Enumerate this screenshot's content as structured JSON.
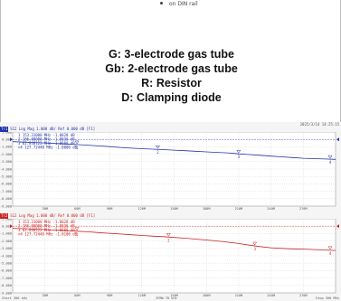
{
  "document": {
    "caption": "on DIN rail",
    "legend": [
      "G: 3-electrode gas tube",
      "Gb: 2-electrode gas tube",
      "R: Resistor",
      "D: Clamping diode"
    ]
  },
  "analyzer": {
    "datetime": "2025/3/14 14:25:15",
    "footer": {
      "start": "Start 300 kHz",
      "ifbw": "IFBW 70 kHz",
      "stop": "Stop 300 MHz"
    },
    "traces": [
      {
        "tag": "Tr1",
        "header": "S12 Log Mag 1.000 dB/ Ref 0.000 dB [F1]",
        "color": "#2233aa",
        "markers": [
          "1  153.31000 MHz  -1.0028 dB",
          "2  186.00000 MHz  -1.0036 dB",
          "3  62.848122 MHz  -1.0600 dB",
          ">4  127.72440 MHz  -1.0000 dB"
        ],
        "y_ticks": [
          "1.000",
          "0.000",
          "-1.000",
          "-2.000",
          "-3.000",
          "-4.000",
          "-5.000",
          "-6.000",
          "-7.000",
          "-8.000",
          "-9.000"
        ],
        "x_ticks": [
          "30M",
          "60M",
          "90M",
          "120M",
          "150M",
          "180M",
          "210M",
          "240M",
          "270M"
        ],
        "ylim": [
          -9,
          1
        ],
        "trace": {
          "x": [
            0.3,
            10,
            20,
            30,
            40,
            50,
            60,
            70,
            80,
            90,
            100,
            110,
            120,
            130,
            140,
            150,
            160,
            170,
            180,
            190,
            200,
            210,
            220,
            230,
            240,
            250,
            260,
            270,
            280,
            290,
            300
          ],
          "y": [
            -0.3,
            -0.36,
            -0.42,
            -0.48,
            -0.55,
            -0.62,
            -0.7,
            -0.78,
            -0.88,
            -0.98,
            -1.08,
            -1.18,
            -1.26,
            -1.32,
            -1.38,
            -1.45,
            -1.52,
            -1.6,
            -1.68,
            -1.75,
            -1.82,
            -1.95,
            -2.05,
            -2.15,
            -2.25,
            -2.35,
            -2.45,
            -2.55,
            -2.6,
            -2.65,
            -2.7
          ]
        },
        "marker_points": [
          {
            "label": "1",
            "x": 60,
            "y": -0.7
          },
          {
            "label": "2",
            "x": 135,
            "y": -1.34
          },
          {
            "label": "3",
            "x": 210,
            "y": -1.95
          },
          {
            "label": "4",
            "x": 295,
            "y": -2.68
          }
        ]
      },
      {
        "tag": "Tr2",
        "header": "S12 Log Mag 1.000 dB/ Ref 0.000 dB [F1]",
        "color": "#cc2222",
        "markers": [
          "1  153.31000 MHz  -1.0028 dB",
          "2  186.00000 MHz  -1.0036 dB",
          "3  62.848122 MHz  -1.0600 dB",
          ">4  127.72440 MHz  -1.0100 dB"
        ],
        "y_ticks": [
          "1.000",
          "0.000",
          "-1.000",
          "-2.000",
          "-3.000",
          "-4.000",
          "-5.000",
          "-6.000",
          "-7.000",
          "-8.000",
          "-9.000"
        ],
        "x_ticks": [
          "30M",
          "60M",
          "90M",
          "120M",
          "150M",
          "180M",
          "210M",
          "240M",
          "270M"
        ],
        "ylim": [
          -9,
          1
        ],
        "trace": {
          "x": [
            0.3,
            10,
            20,
            30,
            40,
            50,
            60,
            70,
            80,
            90,
            100,
            110,
            120,
            130,
            140,
            150,
            160,
            170,
            180,
            190,
            200,
            210,
            220,
            230,
            240,
            250,
            260,
            270,
            280,
            290,
            300
          ],
          "y": [
            -0.3,
            -0.34,
            -0.4,
            -0.46,
            -0.52,
            -0.6,
            -0.68,
            -0.76,
            -0.86,
            -0.96,
            -1.06,
            -1.16,
            -1.26,
            -1.34,
            -1.42,
            -1.52,
            -1.62,
            -1.74,
            -1.86,
            -2.0,
            -2.16,
            -2.34,
            -2.56,
            -2.76,
            -2.92,
            -3.0,
            -3.06,
            -3.1,
            -3.16,
            -3.22,
            -3.28
          ]
        },
        "marker_points": [
          {
            "label": "1",
            "x": 60,
            "y": -0.68
          },
          {
            "label": "2",
            "x": 145,
            "y": -1.47
          },
          {
            "label": "3",
            "x": 225,
            "y": -2.66
          },
          {
            "label": "4",
            "x": 295,
            "y": -3.25
          }
        ]
      }
    ]
  }
}
